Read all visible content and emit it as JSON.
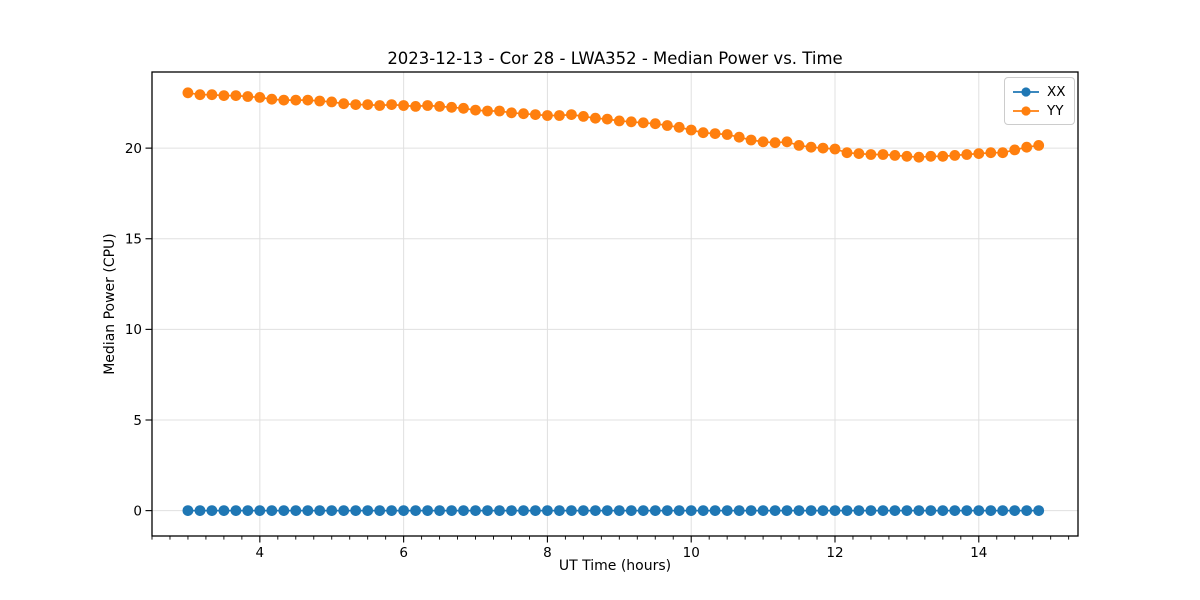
{
  "chart_data": {
    "type": "line",
    "title": "2023-12-13 - Cor 28 - LWA352 - Median Power vs. Time",
    "xlabel": "UT Time (hours)",
    "ylabel": "Median Power (CPU)",
    "xlim": [
      2.5,
      15.38
    ],
    "ylim": [
      -1.4,
      24.2
    ],
    "xticks": [
      4,
      6,
      8,
      10,
      12,
      14
    ],
    "yticks": [
      0,
      5,
      10,
      15,
      20
    ],
    "minor_xtick_step": 0.25,
    "grid": true,
    "grid_color": "#e0e0e0",
    "legend_position": "upper right",
    "marker": "circle",
    "x": [
      3.0,
      3.167,
      3.333,
      3.5,
      3.667,
      3.833,
      4.0,
      4.167,
      4.333,
      4.5,
      4.667,
      4.833,
      5.0,
      5.167,
      5.333,
      5.5,
      5.667,
      5.833,
      6.0,
      6.167,
      6.333,
      6.5,
      6.667,
      6.833,
      7.0,
      7.167,
      7.333,
      7.5,
      7.667,
      7.833,
      8.0,
      8.167,
      8.333,
      8.5,
      8.667,
      8.833,
      9.0,
      9.167,
      9.333,
      9.5,
      9.667,
      9.833,
      10.0,
      10.167,
      10.333,
      10.5,
      10.667,
      10.833,
      11.0,
      11.167,
      11.333,
      11.5,
      11.667,
      11.833,
      12.0,
      12.167,
      12.333,
      12.5,
      12.667,
      12.833,
      13.0,
      13.167,
      13.333,
      13.5,
      13.667,
      13.833,
      14.0,
      14.167,
      14.333,
      14.5,
      14.667,
      14.833
    ],
    "series": [
      {
        "name": "XX",
        "color": "#1f77b4",
        "values": [
          0.0,
          0.0,
          0.0,
          0.0,
          0.0,
          0.0,
          0.0,
          0.0,
          0.0,
          0.0,
          0.0,
          0.0,
          0.0,
          0.0,
          0.0,
          0.0,
          0.0,
          0.0,
          0.0,
          0.0,
          0.0,
          0.0,
          0.0,
          0.0,
          0.0,
          0.0,
          0.0,
          0.0,
          0.0,
          0.0,
          0.0,
          0.0,
          0.0,
          0.0,
          0.0,
          0.0,
          0.0,
          0.0,
          0.0,
          0.0,
          0.0,
          0.0,
          0.0,
          0.0,
          0.0,
          0.0,
          0.0,
          0.0,
          0.0,
          0.0,
          0.0,
          0.0,
          0.0,
          0.0,
          0.0,
          0.0,
          0.0,
          0.0,
          0.0,
          0.0,
          0.0,
          0.0,
          0.0,
          0.0,
          0.0,
          0.0,
          0.0,
          0.0,
          0.0,
          0.0,
          0.0,
          0.0
        ]
      },
      {
        "name": "YY",
        "color": "#ff7f0e",
        "values": [
          23.05,
          22.95,
          22.95,
          22.9,
          22.9,
          22.85,
          22.8,
          22.7,
          22.65,
          22.65,
          22.65,
          22.6,
          22.55,
          22.45,
          22.4,
          22.4,
          22.35,
          22.4,
          22.35,
          22.3,
          22.35,
          22.3,
          22.25,
          22.2,
          22.1,
          22.05,
          22.05,
          21.95,
          21.9,
          21.85,
          21.8,
          21.8,
          21.85,
          21.75,
          21.65,
          21.6,
          21.5,
          21.45,
          21.4,
          21.35,
          21.25,
          21.15,
          21.0,
          20.85,
          20.8,
          20.75,
          20.6,
          20.45,
          20.35,
          20.3,
          20.35,
          20.15,
          20.05,
          20.0,
          19.95,
          19.75,
          19.7,
          19.65,
          19.65,
          19.6,
          19.55,
          19.5,
          19.55,
          19.55,
          19.6,
          19.65,
          19.7,
          19.75,
          19.75,
          19.9,
          20.05,
          20.15
        ]
      }
    ]
  }
}
